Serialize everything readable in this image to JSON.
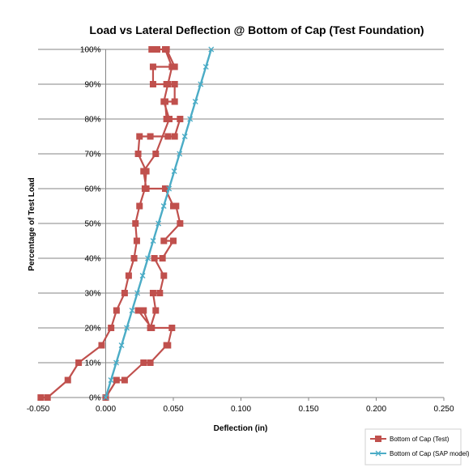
{
  "chart_data": {
    "type": "line",
    "title": "Load vs Lateral Deflection @ Bottom of Cap (Test Foundation)",
    "xlabel": "Deflection (in)",
    "ylabel": "Percentage of Test Load",
    "xlim": [
      -0.05,
      0.25
    ],
    "ylim": [
      0,
      100
    ],
    "x_ticks": [
      -0.05,
      0.0,
      0.05,
      0.1,
      0.15,
      0.2,
      0.25
    ],
    "x_tick_labels": [
      "-0.050",
      "0.000",
      "0.050",
      "0.100",
      "0.150",
      "0.200",
      "0.250"
    ],
    "y_ticks": [
      0,
      10,
      20,
      30,
      40,
      50,
      60,
      70,
      80,
      90,
      100
    ],
    "y_tick_labels": [
      "0%",
      "10%",
      "20%",
      "30%",
      "40%",
      "50%",
      "60%",
      "70%",
      "80%",
      "90%",
      "100%"
    ],
    "grid": "horizontal",
    "legend_position": "bottom-right",
    "series": [
      {
        "name": "Bottom of Cap (Test)",
        "color": "#c0504d",
        "marker": "square",
        "points": [
          [
            -0.048,
            0
          ],
          [
            -0.043,
            0
          ],
          [
            -0.028,
            5
          ],
          [
            -0.02,
            10
          ],
          [
            -0.003,
            15
          ],
          [
            0.004,
            20
          ],
          [
            0.008,
            25
          ],
          [
            0.014,
            30
          ],
          [
            0.017,
            35
          ],
          [
            0.021,
            40
          ],
          [
            0.023,
            45
          ],
          [
            0.022,
            50
          ],
          [
            0.025,
            55
          ],
          [
            0.029,
            60
          ],
          [
            0.03,
            65
          ],
          [
            0.024,
            70
          ],
          [
            0.025,
            75
          ],
          [
            0.033,
            75
          ],
          [
            0.046,
            75
          ],
          [
            0.051,
            75
          ],
          [
            0.055,
            80
          ],
          [
            0.045,
            80
          ],
          [
            0.044,
            85
          ],
          [
            0.051,
            85
          ],
          [
            0.051,
            90
          ],
          [
            0.045,
            90
          ],
          [
            0.035,
            90
          ],
          [
            0.035,
            95
          ],
          [
            0.051,
            95
          ],
          [
            0.045,
            100
          ],
          [
            0.038,
            100
          ],
          [
            0.034,
            100
          ],
          [
            0.044,
            100
          ],
          [
            0.049,
            95
          ],
          [
            0.046,
            90
          ],
          [
            0.043,
            85
          ],
          [
            0.047,
            80
          ],
          [
            0.037,
            70
          ],
          [
            0.028,
            65
          ],
          [
            0.03,
            60
          ],
          [
            0.044,
            60
          ],
          [
            0.05,
            55
          ],
          [
            0.052,
            55
          ],
          [
            0.055,
            50
          ],
          [
            0.043,
            45
          ],
          [
            0.05,
            45
          ],
          [
            0.042,
            40
          ],
          [
            0.036,
            40
          ],
          [
            0.043,
            35
          ],
          [
            0.04,
            30
          ],
          [
            0.035,
            30
          ],
          [
            0.037,
            25
          ],
          [
            0.033,
            20
          ],
          [
            0.028,
            25
          ],
          [
            0.024,
            25
          ],
          [
            0.034,
            20
          ],
          [
            0.049,
            20
          ],
          [
            0.046,
            15
          ],
          [
            0.045,
            15
          ],
          [
            0.033,
            10
          ],
          [
            0.028,
            10
          ],
          [
            0.014,
            5
          ],
          [
            0.008,
            5
          ],
          [
            0.0,
            0
          ]
        ]
      },
      {
        "name": "Bottom of Cap (SAP model)",
        "color": "#4bacc6",
        "marker": "x",
        "points": [
          [
            0.0,
            0
          ],
          [
            0.0039,
            5
          ],
          [
            0.0078,
            10
          ],
          [
            0.0117,
            15
          ],
          [
            0.0156,
            20
          ],
          [
            0.0195,
            25
          ],
          [
            0.0234,
            30
          ],
          [
            0.0273,
            35
          ],
          [
            0.0312,
            40
          ],
          [
            0.0351,
            45
          ],
          [
            0.039,
            50
          ],
          [
            0.0429,
            55
          ],
          [
            0.0468,
            60
          ],
          [
            0.0507,
            65
          ],
          [
            0.0546,
            70
          ],
          [
            0.0585,
            75
          ],
          [
            0.0624,
            80
          ],
          [
            0.0663,
            85
          ],
          [
            0.0702,
            90
          ],
          [
            0.0741,
            95
          ],
          [
            0.078,
            100
          ]
        ]
      }
    ]
  }
}
